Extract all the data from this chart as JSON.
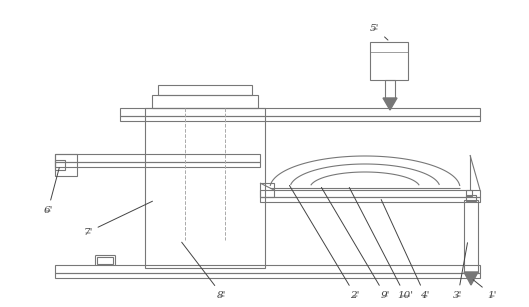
{
  "bg_color": "#ffffff",
  "lc": "#777777",
  "dc": "#aaaaaa",
  "figsize": [
    5.29,
    3.07
  ],
  "dpi": 100
}
